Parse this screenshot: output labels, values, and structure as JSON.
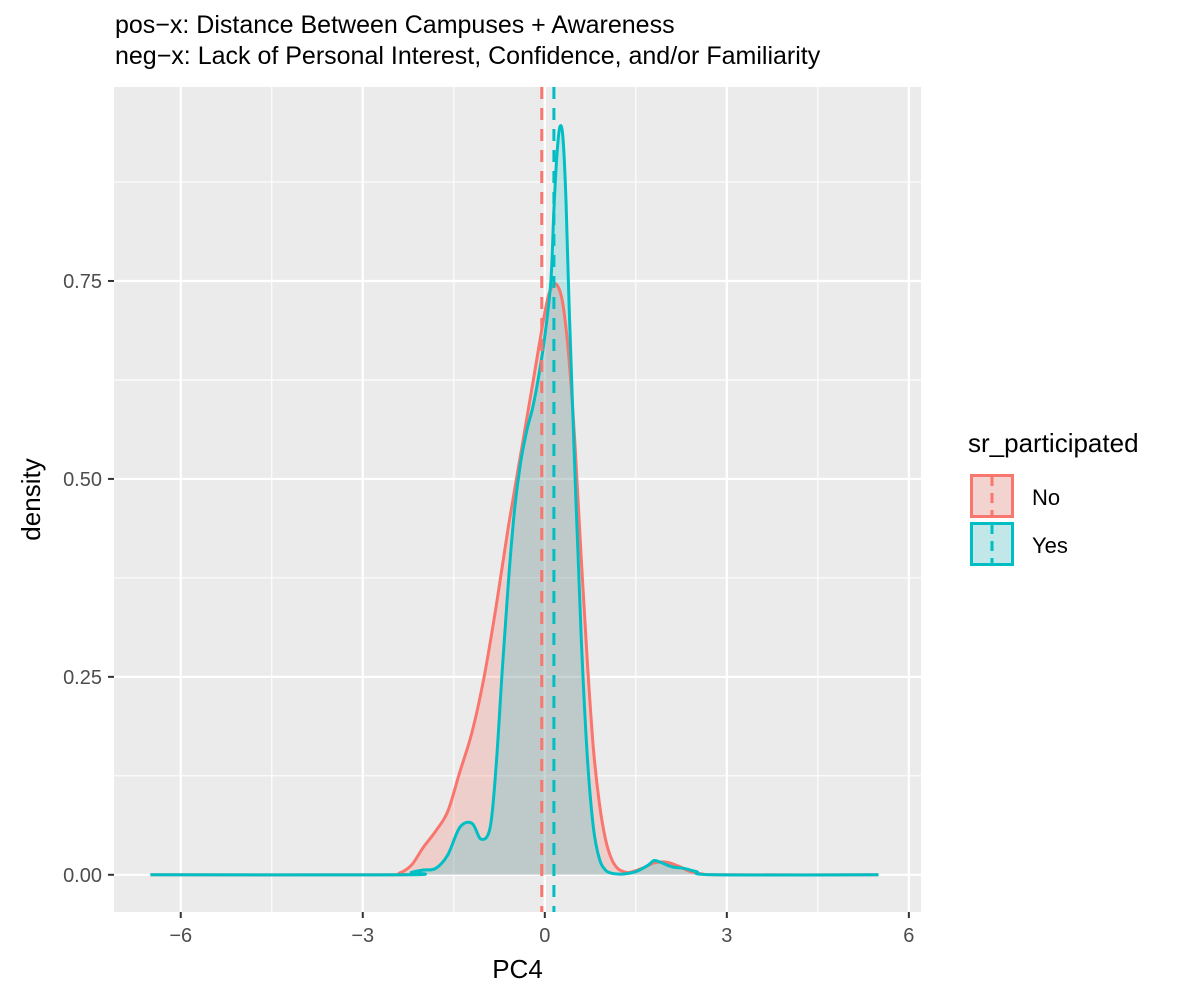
{
  "chart_data": {
    "type": "area",
    "title": "pos−x: Distance Between Campuses + Awareness",
    "subtitle": "neg−x: Lack of Personal Interest, Confidence, and/or Familiarity",
    "xlabel": "PC4",
    "ylabel": "density",
    "xlim": [
      -7.1,
      6.2
    ],
    "ylim": [
      -0.047,
      0.995
    ],
    "x_ticks": [
      -6,
      -3,
      0,
      3,
      6
    ],
    "x_tick_labels": [
      "−6",
      "−3",
      "0",
      "3",
      "6"
    ],
    "y_ticks": [
      0.0,
      0.25,
      0.5,
      0.75
    ],
    "y_tick_labels": [
      "0.00",
      "0.25",
      "0.50",
      "0.75"
    ],
    "grid": true,
    "legend": {
      "title": "sr_participated",
      "position": "right",
      "entries": [
        "No",
        "Yes"
      ]
    },
    "series": [
      {
        "name": "No",
        "color": "#F8766D",
        "fill": "rgba(248,118,109,0.25)",
        "mean": -0.05,
        "x": [
          -6.5,
          -2.6,
          -2.4,
          -2.2,
          -2.0,
          -1.8,
          -1.6,
          -1.4,
          -1.2,
          -1.0,
          -0.8,
          -0.6,
          -0.4,
          -0.2,
          0.0,
          0.1,
          0.2,
          0.3,
          0.4,
          0.5,
          0.6,
          0.7,
          0.8,
          0.9,
          1.0,
          1.1,
          1.2,
          1.3,
          1.4,
          1.6,
          1.8,
          2.0,
          2.2,
          2.4,
          2.6,
          3.0,
          5.5
        ],
        "y": [
          0,
          0,
          0.002,
          0.012,
          0.035,
          0.055,
          0.08,
          0.13,
          0.18,
          0.25,
          0.34,
          0.44,
          0.53,
          0.62,
          0.71,
          0.74,
          0.745,
          0.72,
          0.65,
          0.54,
          0.4,
          0.27,
          0.16,
          0.09,
          0.045,
          0.02,
          0.008,
          0.004,
          0.003,
          0.008,
          0.015,
          0.016,
          0.011,
          0.004,
          0.001,
          0,
          0
        ]
      },
      {
        "name": "Yes",
        "color": "#00BFC4",
        "fill": "rgba(0,191,196,0.20)",
        "mean": 0.15,
        "x": [
          -6.5,
          -2.3,
          -2.2,
          -2.0,
          -1.8,
          -1.6,
          -1.4,
          -1.2,
          -1.05,
          -0.9,
          -0.8,
          -0.7,
          -0.6,
          -0.5,
          -0.4,
          -0.3,
          -0.2,
          -0.1,
          0.0,
          0.1,
          0.15,
          0.2,
          0.25,
          0.3,
          0.35,
          0.4,
          0.5,
          0.6,
          0.7,
          0.8,
          0.9,
          1.0,
          1.1,
          1.2,
          1.3,
          1.5,
          1.7,
          1.8,
          1.9,
          2.1,
          2.3,
          2.5,
          2.8,
          5.5
        ],
        "y": [
          0,
          0,
          0.003,
          0.006,
          0.008,
          0.025,
          0.06,
          0.065,
          0.045,
          0.06,
          0.14,
          0.26,
          0.37,
          0.46,
          0.52,
          0.56,
          0.59,
          0.63,
          0.68,
          0.75,
          0.84,
          0.91,
          0.945,
          0.93,
          0.85,
          0.72,
          0.5,
          0.3,
          0.15,
          0.06,
          0.02,
          0.006,
          0.002,
          0.001,
          0.001,
          0.004,
          0.012,
          0.018,
          0.016,
          0.01,
          0.008,
          0.004,
          0,
          0
        ]
      }
    ]
  }
}
